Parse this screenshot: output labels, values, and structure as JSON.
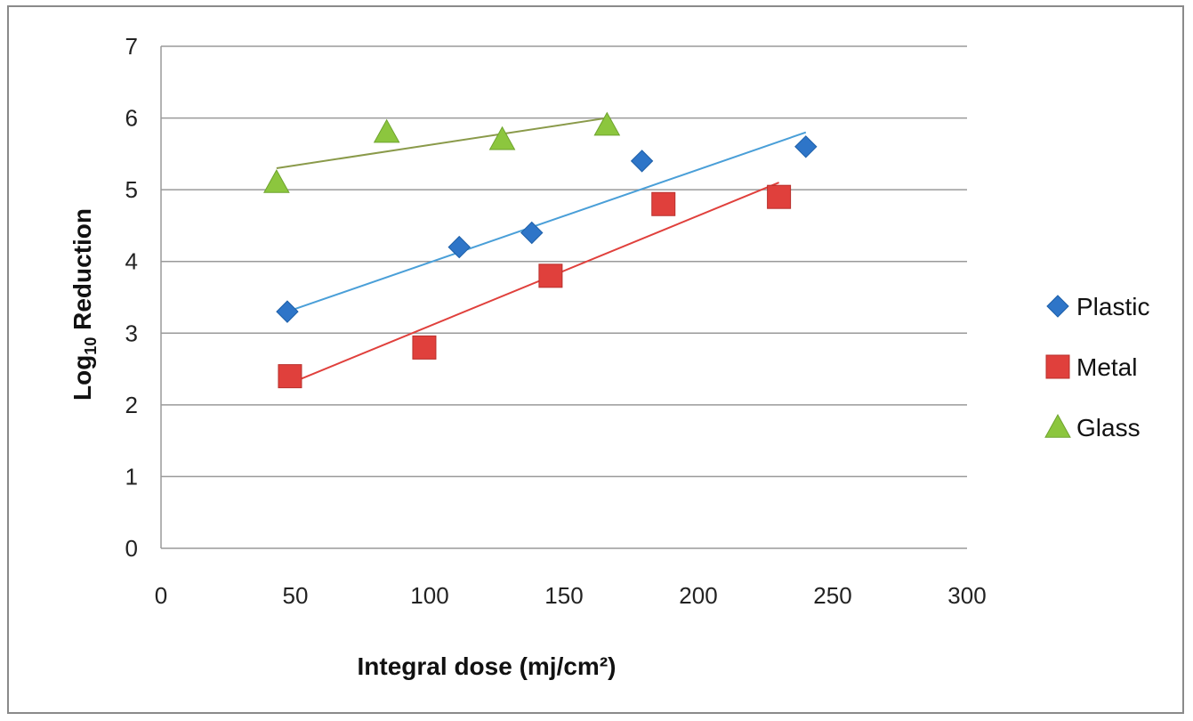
{
  "chart_data": {
    "type": "scatter",
    "xlabel": "Integral dose (mj/cm²)",
    "ylabel_main": "Log",
    "ylabel_sub": "10",
    "ylabel_rest": " Reduction",
    "xlim": [
      0,
      300
    ],
    "ylim": [
      0,
      7
    ],
    "x_ticks": [
      0,
      50,
      100,
      150,
      200,
      250,
      300
    ],
    "y_ticks": [
      0,
      1,
      2,
      3,
      4,
      5,
      6,
      7
    ],
    "grid": "horizontal",
    "legend_position": "right",
    "series": [
      {
        "name": "Plastic",
        "marker": "diamond",
        "color": "#2e75c8",
        "trend_color": "#4a9fd8",
        "x": [
          47,
          111,
          138,
          179,
          240
        ],
        "y": [
          3.3,
          4.2,
          4.4,
          5.4,
          5.6
        ],
        "trendline": {
          "x": [
            47,
            240
          ],
          "y": [
            3.3,
            5.8
          ]
        }
      },
      {
        "name": "Metal",
        "marker": "square",
        "color": "#e0403c",
        "trend_color": "#e0403c",
        "x": [
          48,
          98,
          145,
          187,
          230
        ],
        "y": [
          2.4,
          2.8,
          3.8,
          4.8,
          4.9
        ],
        "trendline": {
          "x": [
            48,
            230
          ],
          "y": [
            2.3,
            5.1
          ]
        }
      },
      {
        "name": "Glass",
        "marker": "triangle",
        "color": "#8cc63e",
        "trend_color": "#8a9a4a",
        "x": [
          43,
          84,
          127,
          166
        ],
        "y": [
          5.1,
          5.8,
          5.7,
          5.9
        ],
        "trendline": {
          "x": [
            43,
            166
          ],
          "y": [
            5.3,
            6.0
          ]
        }
      }
    ]
  }
}
